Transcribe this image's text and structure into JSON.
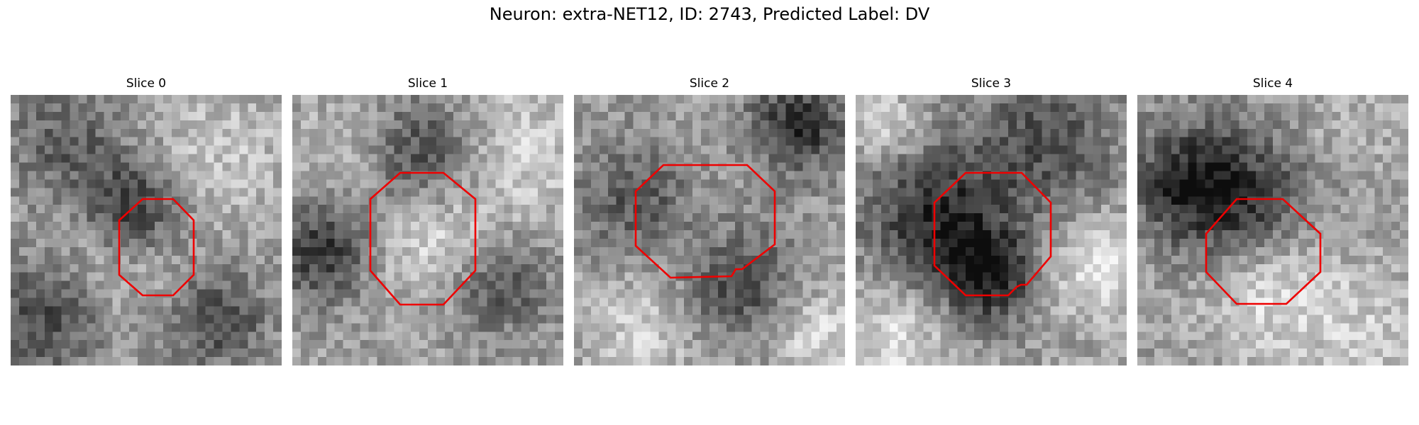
{
  "figure": {
    "title": "Neuron: extra-NET12, ID: 2743, Predicted Label: DV",
    "outline_color": "#ee0000"
  },
  "slices": [
    {
      "label": "Slice 0"
    },
    {
      "label": "Slice 1"
    },
    {
      "label": "Slice 2"
    },
    {
      "label": "Slice 3"
    },
    {
      "label": "Slice 4"
    }
  ]
}
